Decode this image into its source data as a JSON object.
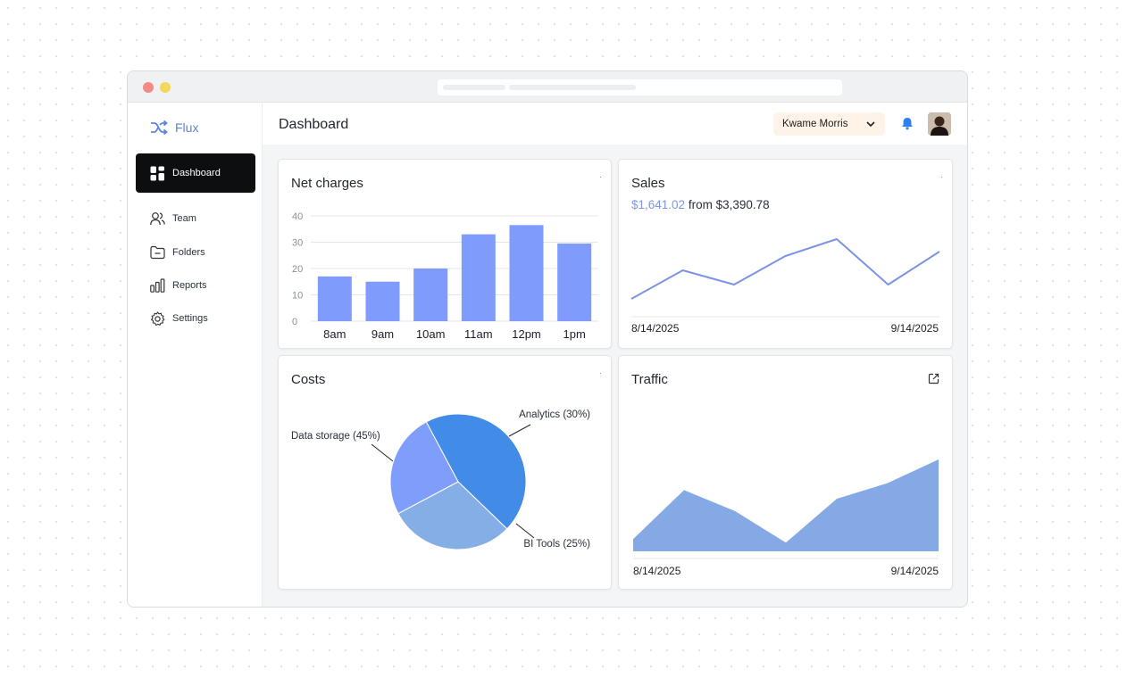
{
  "app": {
    "name": "Flux"
  },
  "sidebar": {
    "items": [
      {
        "label": "Dashboard",
        "icon": "grid-icon",
        "active": true
      },
      {
        "label": "Team",
        "icon": "users-icon"
      },
      {
        "label": "Folders",
        "icon": "folder-icon"
      },
      {
        "label": "Reports",
        "icon": "bar-chart-icon"
      },
      {
        "label": "Settings",
        "icon": "gear-icon"
      }
    ]
  },
  "header": {
    "title": "Dashboard",
    "user": "Kwame Morris"
  },
  "colors": {
    "accent": "#5b86d9",
    "bar": "#7f9bfc",
    "line": "#7b93e6",
    "area": "#84a9e5",
    "pie_blue": "#428be6",
    "pie_light": "#85aee6",
    "pie_periwinkle": "#7f9efb",
    "notification": "#2f7ff0"
  },
  "cards": {
    "net_charges": {
      "title": "Net charges"
    },
    "sales": {
      "title": "Sales",
      "amount": "$1,641.02",
      "compare": "from $3,390.78",
      "start_date": "8/14/2025",
      "end_date": "9/14/2025"
    },
    "costs": {
      "title": "Costs"
    },
    "traffic": {
      "title": "Traffic",
      "start_date": "8/14/2025",
      "end_date": "9/14/2025"
    }
  },
  "chart_data": [
    {
      "type": "bar",
      "title": "Net charges",
      "categories": [
        "8am",
        "9am",
        "10am",
        "11am",
        "12pm",
        "1pm"
      ],
      "values": [
        17,
        15,
        20,
        33,
        36.5,
        29.5
      ],
      "ylim": [
        0,
        40
      ],
      "yticks": [
        0,
        10,
        20,
        30,
        40
      ],
      "grid": true
    },
    {
      "type": "line",
      "title": "Sales",
      "x": [
        "8/14/2025",
        "",
        "",
        "",
        "",
        "",
        "9/14/2025"
      ],
      "values": [
        20,
        52,
        36,
        68,
        87,
        36,
        73
      ],
      "grid": false
    },
    {
      "type": "pie",
      "title": "Costs",
      "slices": [
        {
          "label": "Data storage (45%)",
          "value": 45
        },
        {
          "label": "Analytics (30%)",
          "value": 30
        },
        {
          "label": "BI Tools (25%)",
          "value": 25
        }
      ]
    },
    {
      "type": "area",
      "title": "Traffic",
      "x": [
        "8/14/2025",
        "",
        "",
        "",
        "",
        "",
        "9/14/2025"
      ],
      "values": [
        14,
        70,
        46,
        10,
        60,
        78,
        105
      ],
      "grid": false
    }
  ]
}
